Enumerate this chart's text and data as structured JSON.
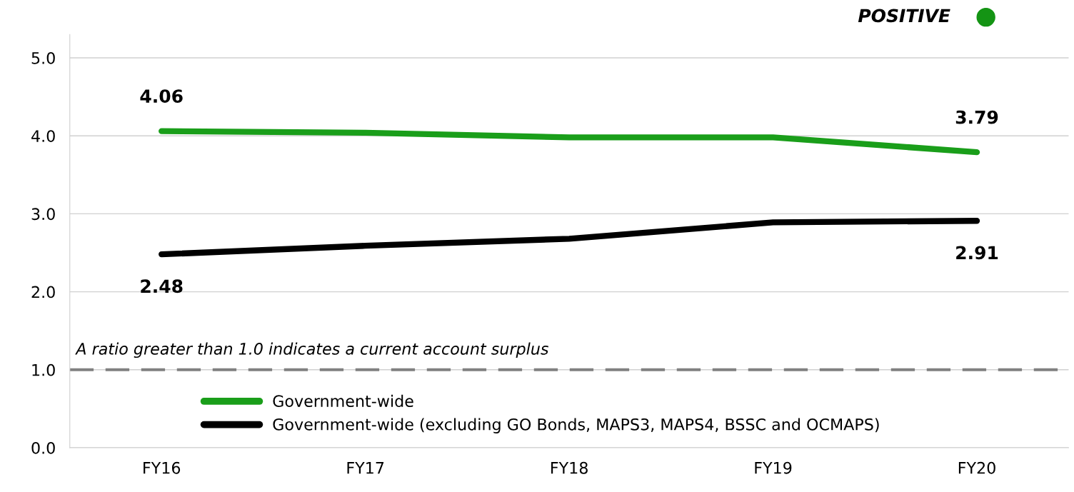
{
  "chart_data": {
    "type": "line",
    "categories": [
      "FY16",
      "FY17",
      "FY18",
      "FY19",
      "FY20"
    ],
    "series": [
      {
        "name": "Government-wide",
        "color": "#1a9e1a",
        "values": [
          4.06,
          4.04,
          3.98,
          3.98,
          3.79
        ],
        "value_labels": [
          "4.06",
          null,
          null,
          null,
          "3.79"
        ]
      },
      {
        "name": "Government-wide (excluding GO Bonds, MAPS3, MAPS4, BSSC and OCMAPS)",
        "color": "#000000",
        "values": [
          2.48,
          2.59,
          2.68,
          2.89,
          2.91
        ],
        "value_labels": [
          "2.48",
          null,
          null,
          null,
          "2.91"
        ]
      }
    ],
    "ylim": [
      0,
      5.3
    ],
    "yticks": [
      {
        "value": 0,
        "label": "0.0"
      },
      {
        "value": 1,
        "label": "1.0"
      },
      {
        "value": 2,
        "label": "2.0"
      },
      {
        "value": 3,
        "label": "3.0"
      },
      {
        "value": 4,
        "label": "4.0"
      },
      {
        "value": 5,
        "label": "5.0"
      }
    ],
    "grid": "y",
    "legend": "bottom",
    "marker": "none",
    "line_style": "solid",
    "ref_lines": [
      {
        "axis": "y",
        "value": 1.0,
        "label": "A ratio greater than 1.0 indicates a current account surplus",
        "color": "#808080",
        "line_style": "dashed"
      }
    ],
    "annotations": [
      "POSITIVE"
    ]
  }
}
